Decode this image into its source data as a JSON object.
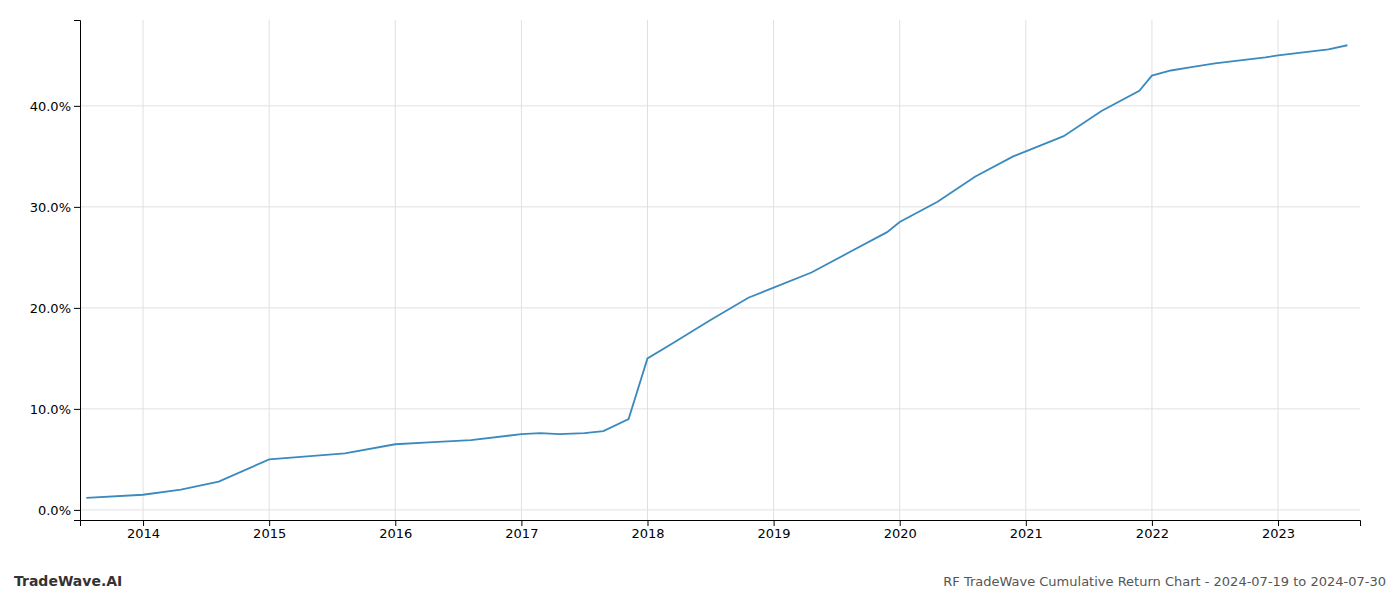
{
  "chart_data": {
    "type": "line",
    "title": "RF TradeWave Cumulative Return Chart - 2024-07-19 to 2024-07-30",
    "annotations": [
      "TradeWave.AI"
    ],
    "x": [
      2013.55,
      2014.0,
      2014.3,
      2014.6,
      2015.0,
      2015.3,
      2015.6,
      2016.0,
      2016.3,
      2016.6,
      2017.0,
      2017.15,
      2017.3,
      2017.5,
      2017.65,
      2017.85,
      2018.0,
      2018.2,
      2018.5,
      2018.8,
      2019.0,
      2019.3,
      2019.6,
      2019.9,
      2020.0,
      2020.3,
      2020.6,
      2020.9,
      2021.0,
      2021.3,
      2021.6,
      2021.9,
      2022.0,
      2022.15,
      2022.3,
      2022.5,
      2022.7,
      2022.9,
      2023.0,
      2023.2,
      2023.4,
      2023.55
    ],
    "values": [
      1.2,
      1.5,
      2.0,
      2.8,
      5.0,
      5.3,
      5.6,
      6.5,
      6.7,
      6.9,
      7.5,
      7.6,
      7.5,
      7.6,
      7.8,
      9.0,
      15.0,
      16.5,
      18.8,
      21.0,
      22.0,
      23.5,
      25.5,
      27.5,
      28.5,
      30.5,
      33.0,
      35.0,
      35.5,
      37.0,
      39.5,
      41.5,
      43.0,
      43.5,
      43.8,
      44.2,
      44.5,
      44.8,
      45.0,
      45.3,
      45.6,
      46.0
    ],
    "color": "#3a8abf",
    "xlim": [
      2013.5,
      2023.65
    ],
    "xticks": [
      2014,
      2015,
      2016,
      2017,
      2018,
      2019,
      2020,
      2021,
      2022,
      2023
    ],
    "ylim": [
      -1.0,
      48.5
    ],
    "yticks": [
      {
        "value": 0.0,
        "label": "0.0%"
      },
      {
        "value": 10.0,
        "label": "10.0%"
      },
      {
        "value": 20.0,
        "label": "20.0%"
      },
      {
        "value": 30.0,
        "label": "30.0%"
      },
      {
        "value": 40.0,
        "label": "40.0%"
      }
    ],
    "grid": true
  }
}
